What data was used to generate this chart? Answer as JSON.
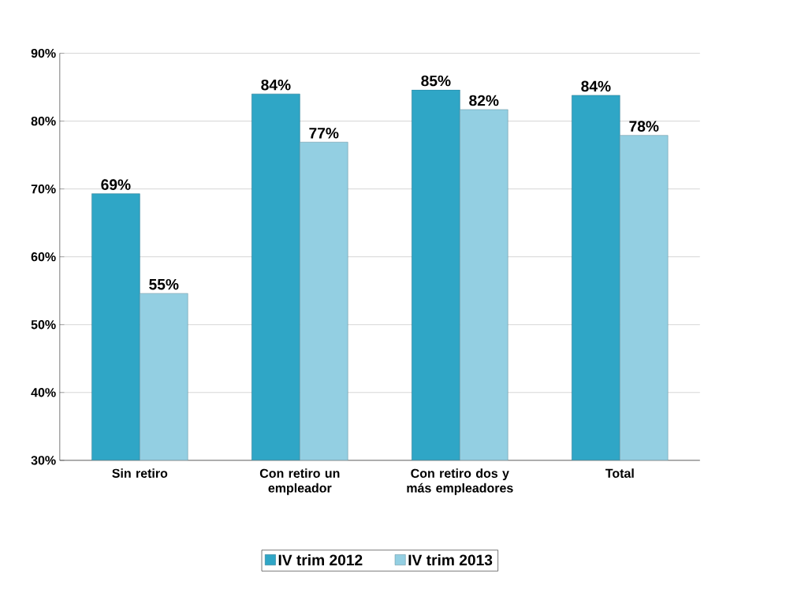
{
  "chart_data": {
    "type": "bar",
    "categories": [
      "Sin retiro",
      "Con retiro un empleador",
      "Con retiro dos y más empleadores",
      "Total"
    ],
    "series": [
      {
        "name": "IV trim 2012",
        "color": "#2fa6c6",
        "values": [
          69.3,
          84.0,
          84.6,
          83.8
        ],
        "value_labels": [
          "69%",
          "84%",
          "85%",
          "84%"
        ]
      },
      {
        "name": "IV trim 2013",
        "color": "#93cfe2",
        "values": [
          54.6,
          76.9,
          81.7,
          77.9
        ],
        "value_labels": [
          "55%",
          "77%",
          "82%",
          "78%"
        ]
      }
    ],
    "ylim": [
      30,
      90
    ],
    "yticks": [
      {
        "value": 30,
        "label": "30%"
      },
      {
        "value": 40,
        "label": "40%"
      },
      {
        "value": 50,
        "label": "50%"
      },
      {
        "value": 60,
        "label": "60%"
      },
      {
        "value": 70,
        "label": "70%"
      },
      {
        "value": 80,
        "label": "80%"
      },
      {
        "value": 90,
        "label": "90%"
      }
    ],
    "grid": "y",
    "legend": "bottom"
  }
}
